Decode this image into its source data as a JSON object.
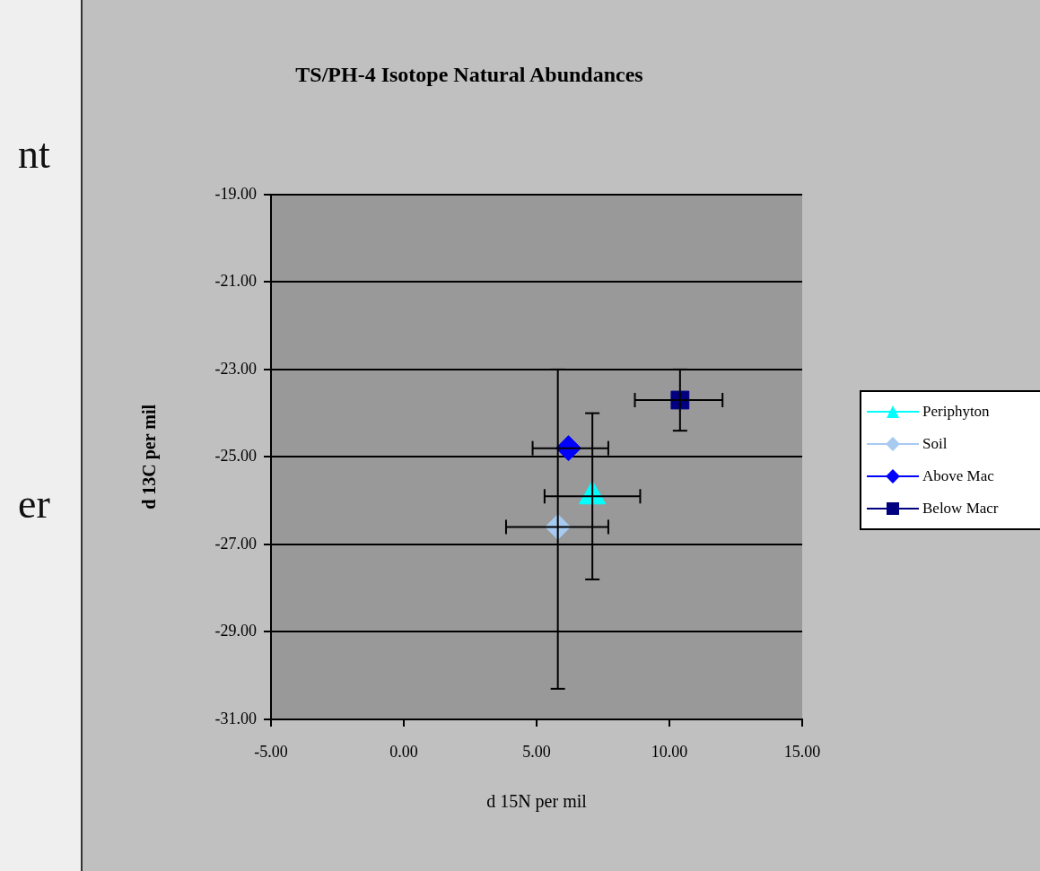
{
  "chart_data": {
    "type": "scatter",
    "title": "TS/PH-4 Isotope Natural Abundances",
    "xlabel": "d 15N per mil",
    "ylabel": "d 13C per mil",
    "annotations": [
      "nt",
      "er"
    ],
    "series": [
      {
        "name": "Periphyton",
        "color": "#00ffff",
        "marker": "triangle",
        "x": [
          7.1
        ],
        "values": [
          -25.9
        ],
        "errors": [
          [
            -27.8,
            -24.0
          ]
        ],
        "xerrors": [
          [
            5.3,
            8.9
          ]
        ]
      },
      {
        "name": "Soil",
        "color": "#a6caf0",
        "marker": "diamond",
        "x": [
          5.8
        ],
        "values": [
          -26.6
        ],
        "errors": [
          [
            -30.3,
            -23.0
          ]
        ],
        "xerrors": [
          [
            3.85,
            7.7
          ]
        ]
      },
      {
        "name": "Above Mac",
        "color": "#0000ff",
        "marker": "diamond",
        "x": [
          6.2
        ],
        "values": [
          -24.8
        ],
        "errors": [
          null
        ],
        "xerrors": [
          [
            4.85,
            7.7
          ]
        ]
      },
      {
        "name": "Below Macr",
        "color": "#000080",
        "marker": "square",
        "x": [
          10.4
        ],
        "values": [
          -23.7
        ],
        "errors": [
          [
            -24.4,
            -23.0
          ]
        ],
        "xerrors": [
          [
            8.7,
            12.0
          ]
        ]
      }
    ],
    "xlim": [
      -5,
      15
    ],
    "xticks": [
      {
        "value": -5,
        "label": "-5.00"
      },
      {
        "value": 0,
        "label": "0.00"
      },
      {
        "value": 5,
        "label": "5.00"
      },
      {
        "value": 10,
        "label": "10.00"
      },
      {
        "value": 15,
        "label": "15.00"
      }
    ],
    "ylim": [
      -31,
      -19
    ],
    "yticks": [
      {
        "value": -31,
        "label": "-31.00"
      },
      {
        "value": -29,
        "label": "-29.00"
      },
      {
        "value": -27,
        "label": "-27.00"
      },
      {
        "value": -25,
        "label": "-25.00"
      },
      {
        "value": -23,
        "label": "-23.00"
      },
      {
        "value": -21,
        "label": "-21.00"
      },
      {
        "value": -19,
        "label": "-19.00"
      }
    ],
    "grid": "y",
    "legend": "right"
  }
}
